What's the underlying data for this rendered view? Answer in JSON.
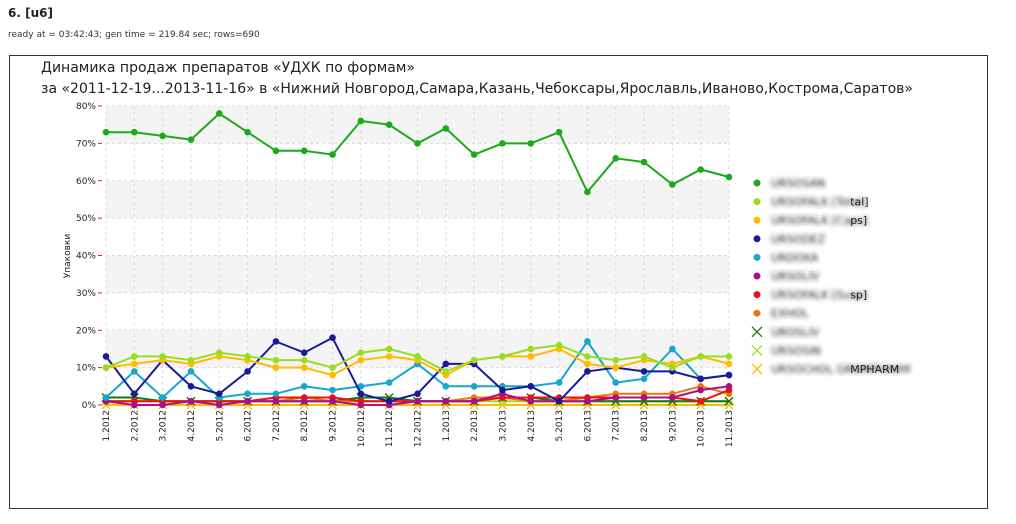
{
  "page": {
    "heading": "6. [u6]",
    "meta": "ready at = 03:42:43; gen time = 219.84 sec; rows=690"
  },
  "chart_data": {
    "type": "line",
    "title": "Динамика продаж препаратов «УДХК по формам»",
    "subtitle": "за «2011-12-19...2013-11-16» в «Нижний Новгород,Самара,Казань,Чебоксары,Ярославль,Иваново,Кострома,Саратов»",
    "xlabel": "",
    "ylabel": "Упаковки",
    "ylim": [
      0,
      80
    ],
    "y_ticks": [
      "0%",
      "10%",
      "20%",
      "30%",
      "40%",
      "50%",
      "60%",
      "70%",
      "80%"
    ],
    "grid": true,
    "legend_position": "right",
    "categories": [
      "1.2012",
      "2.2012",
      "3.2012",
      "4.2012",
      "5.2012",
      "6.2012",
      "7.2012",
      "8.2012",
      "9.2012",
      "10.2012",
      "11.2012",
      "12.2012",
      "1.2013",
      "2.2013",
      "3.2013",
      "4.2013",
      "5.2013",
      "6.2013",
      "7.2013",
      "8.2013",
      "9.2013",
      "10.2013",
      "11.2013"
    ],
    "series": [
      {
        "name": "URSOSAN",
        "legend_visible": "",
        "color": "#1aaa1a",
        "marker": "dot",
        "values": [
          73,
          73,
          72,
          71,
          78,
          73,
          68,
          68,
          67,
          76,
          75,
          70,
          74,
          67,
          70,
          70,
          73,
          57,
          66,
          65,
          59,
          63,
          61
        ]
      },
      {
        "name": "URSOFALK [Total]",
        "legend_visible": "tal]",
        "color": "#99dd22",
        "marker": "dot",
        "values": [
          10,
          13,
          13,
          12,
          14,
          13,
          12,
          12,
          10,
          14,
          15,
          13,
          9,
          12,
          13,
          15,
          16,
          13,
          12,
          13,
          10,
          13,
          13
        ]
      },
      {
        "name": "URSOFALK [Caps]",
        "legend_visible": "ps]",
        "color": "#ffbb00",
        "marker": "dot",
        "values": [
          10,
          11,
          12,
          11,
          13,
          12,
          10,
          10,
          8,
          12,
          13,
          12,
          8,
          12,
          13,
          13,
          15,
          11,
          10,
          12,
          11,
          13,
          11
        ]
      },
      {
        "name": "URSODEZ",
        "legend_visible": "",
        "color": "#1a1a99",
        "marker": "dot",
        "values": [
          13,
          3,
          12,
          5,
          3,
          9,
          17,
          14,
          18,
          3,
          1,
          3,
          11,
          11,
          4,
          5,
          1,
          9,
          10,
          9,
          9,
          7,
          8
        ]
      },
      {
        "name": "URDOXA",
        "legend_visible": "",
        "color": "#17a7cc",
        "marker": "dot",
        "values": [
          2,
          9,
          2,
          9,
          2,
          3,
          3,
          5,
          4,
          5,
          6,
          11,
          5,
          5,
          5,
          5,
          6,
          17,
          6,
          7,
          15,
          7,
          8
        ]
      },
      {
        "name": "URSOLIV",
        "legend_visible": "",
        "color": "#aa1188",
        "marker": "dot",
        "values": [
          1,
          0,
          0,
          1,
          0,
          1,
          1,
          1,
          1,
          0,
          0,
          1,
          1,
          1,
          3,
          1,
          1,
          1,
          2,
          2,
          2,
          4,
          5
        ]
      },
      {
        "name": "URSOFALK [Susp]",
        "legend_visible": "sp]",
        "color": "#ee1111",
        "marker": "dot",
        "values": [
          1,
          1,
          1,
          1,
          1,
          1,
          2,
          2,
          2,
          1,
          1,
          1,
          1,
          1,
          2,
          2,
          2,
          2,
          2,
          2,
          2,
          1,
          4
        ]
      },
      {
        "name": "EXHOL",
        "legend_visible": "",
        "color": "#ee7711",
        "marker": "dot",
        "values": [
          1,
          1,
          1,
          1,
          1,
          1,
          1,
          2,
          1,
          1,
          1,
          1,
          1,
          2,
          2,
          1,
          1,
          2,
          3,
          3,
          3,
          5,
          3
        ]
      },
      {
        "name": "UROSLIV",
        "legend_visible": "",
        "color": "#117711",
        "marker": "x",
        "values": [
          2,
          2,
          1,
          1,
          1,
          1,
          1,
          1,
          1,
          2,
          2,
          1,
          1,
          1,
          2,
          2,
          1,
          1,
          1,
          1,
          1,
          1,
          1
        ]
      },
      {
        "name": "URSOSIN",
        "legend_visible": "",
        "color": "#99dd22",
        "marker": "x",
        "values": [
          1,
          1,
          1,
          1,
          1,
          1,
          1,
          1,
          1,
          1,
          1,
          1,
          1,
          1,
          1,
          1,
          1,
          1,
          1,
          1,
          1,
          1,
          1
        ]
      },
      {
        "name": "URSOCHOL GROMPHARM",
        "legend_visible": "MPHARM",
        "color": "#ffbb00",
        "marker": "x",
        "values": [
          0,
          0,
          0,
          0,
          0,
          0,
          0,
          0,
          0,
          0,
          0,
          0,
          0,
          0,
          0,
          0,
          0,
          0,
          0,
          0,
          0,
          0,
          0
        ]
      }
    ]
  }
}
